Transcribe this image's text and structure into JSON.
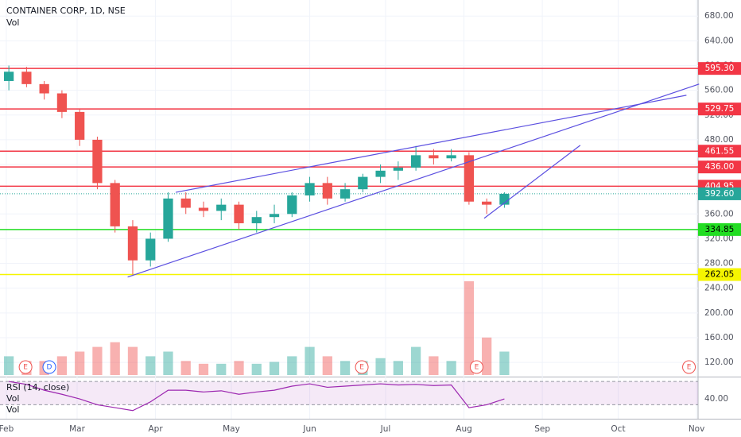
{
  "chart_data": {
    "type": "candlestick",
    "title": "CONTAINER CORP, 1D, NSE",
    "volume_label": "Vol",
    "xlim": [
      29.5,
      305.6
    ],
    "xticks": [
      {
        "value": 32,
        "label": "Feb"
      },
      {
        "value": 60,
        "label": "Mar"
      },
      {
        "value": 91,
        "label": "Apr"
      },
      {
        "value": 121,
        "label": "May"
      },
      {
        "value": 152,
        "label": "Jun"
      },
      {
        "value": 182,
        "label": "Jul"
      },
      {
        "value": 213,
        "label": "Aug"
      },
      {
        "value": 244,
        "label": "Sep"
      },
      {
        "value": 274,
        "label": "Oct"
      },
      {
        "value": 305,
        "label": "Nov"
      }
    ],
    "ylim": [
      97,
      706
    ],
    "yticks": [
      {
        "value": 120,
        "label": "120.00"
      },
      {
        "value": 160,
        "label": "160.00"
      },
      {
        "value": 200,
        "label": "200.00"
      },
      {
        "value": 240,
        "label": "240.00"
      },
      {
        "value": 280,
        "label": "280.00"
      },
      {
        "value": 320,
        "label": "320.00"
      },
      {
        "value": 360,
        "label": "360.00"
      },
      {
        "value": 400,
        "label": "400.00"
      },
      {
        "value": 440,
        "label": "440.00"
      },
      {
        "value": 480,
        "label": "480.00"
      },
      {
        "value": 520,
        "label": "520.00"
      },
      {
        "value": 560,
        "label": "560.00"
      },
      {
        "value": 600,
        "label": "600.00"
      },
      {
        "value": 640,
        "label": "640.00"
      },
      {
        "value": 680,
        "label": "680.00"
      }
    ],
    "grid": true,
    "up_color": "#26a69a",
    "down_color": "#ef5350",
    "candles": {
      "x": [
        33,
        40,
        47,
        54,
        61,
        68,
        75,
        82,
        89,
        96,
        103,
        110,
        117,
        124,
        131,
        138,
        145,
        152,
        159,
        166,
        173,
        180,
        187,
        194,
        201,
        208,
        215,
        222,
        229
      ],
      "open": [
        575,
        590,
        570,
        555,
        525,
        480,
        410,
        340,
        285,
        320,
        385,
        370,
        365,
        375,
        345,
        355,
        360,
        390,
        410,
        385,
        400,
        420,
        430,
        435,
        455,
        450,
        455,
        380,
        375
      ],
      "high": [
        600,
        598,
        575,
        560,
        530,
        485,
        415,
        350,
        330,
        395,
        395,
        380,
        385,
        380,
        365,
        375,
        395,
        420,
        420,
        410,
        425,
        440,
        445,
        470,
        465,
        465,
        460,
        385,
        395
      ],
      "low": [
        560,
        565,
        545,
        515,
        470,
        400,
        330,
        262,
        275,
        315,
        360,
        355,
        350,
        335,
        330,
        345,
        355,
        380,
        375,
        380,
        395,
        410,
        415,
        430,
        440,
        445,
        375,
        360,
        370
      ],
      "close": [
        590,
        570,
        555,
        525,
        480,
        410,
        340,
        285,
        320,
        385,
        370,
        365,
        375,
        345,
        355,
        360,
        390,
        410,
        385,
        400,
        420,
        430,
        435,
        455,
        450,
        455,
        380,
        375,
        392.6
      ],
      "volume": [
        20,
        15,
        15,
        20,
        25,
        30,
        35,
        30,
        20,
        25,
        15,
        12,
        12,
        15,
        12,
        14,
        20,
        30,
        20,
        15,
        15,
        18,
        15,
        30,
        20,
        15,
        100,
        40,
        25
      ]
    },
    "volume_ylim": [
      0,
      100
    ],
    "levels": [
      {
        "value": 595.3,
        "label": "595.30",
        "color": "#f23645"
      },
      {
        "value": 529.75,
        "label": "529.75",
        "color": "#f23645"
      },
      {
        "value": 461.55,
        "label": "461.55",
        "color": "#f23645"
      },
      {
        "value": 436,
        "label": "436.00",
        "color": "#f23645"
      },
      {
        "value": 404.95,
        "label": "404.95",
        "color": "#f23645"
      },
      {
        "value": 334.85,
        "label": "334.85",
        "color": "#22dd22"
      },
      {
        "value": 262.05,
        "label": "262.05",
        "color": "#f5f500"
      }
    ],
    "last_price": {
      "value": 392.6,
      "label": "392.60",
      "color": "#26a69a"
    },
    "trend_lines": [
      {
        "x": [
          80,
          306
        ],
        "y": [
          258,
          570
        ],
        "color": "#5b4fe0"
      },
      {
        "x": [
          99,
          301
        ],
        "y": [
          395,
          552
        ],
        "color": "#5b4fe0"
      },
      {
        "x": [
          221,
          259
        ],
        "y": [
          353,
          471
        ],
        "color": "#5b4fe0"
      }
    ],
    "events": [
      {
        "x": 39.6,
        "label": "E",
        "color": "#ef5350"
      },
      {
        "x": 49,
        "label": "D",
        "color": "#2962ff"
      },
      {
        "x": 172.6,
        "label": "E",
        "color": "#ef5350"
      },
      {
        "x": 218,
        "label": "E",
        "color": "#ef5350"
      },
      {
        "x": 302,
        "label": "E",
        "color": "#ef5350"
      }
    ],
    "rsi": {
      "name": "RSI (14, close)",
      "extra_labels": [
        "Vol",
        "Vol"
      ],
      "color": "#9c27b0",
      "values": [
        70,
        65,
        55,
        48,
        40,
        30,
        25,
        20,
        35,
        55,
        55,
        52,
        54,
        48,
        52,
        55,
        62,
        66,
        60,
        62,
        64,
        66,
        64,
        65,
        63,
        64,
        25,
        30,
        40
      ],
      "ylim": [
        6,
        77
      ],
      "yticks": [
        {
          "value": 40,
          "label": "40.00"
        }
      ],
      "bands": [
        30,
        70
      ]
    }
  }
}
